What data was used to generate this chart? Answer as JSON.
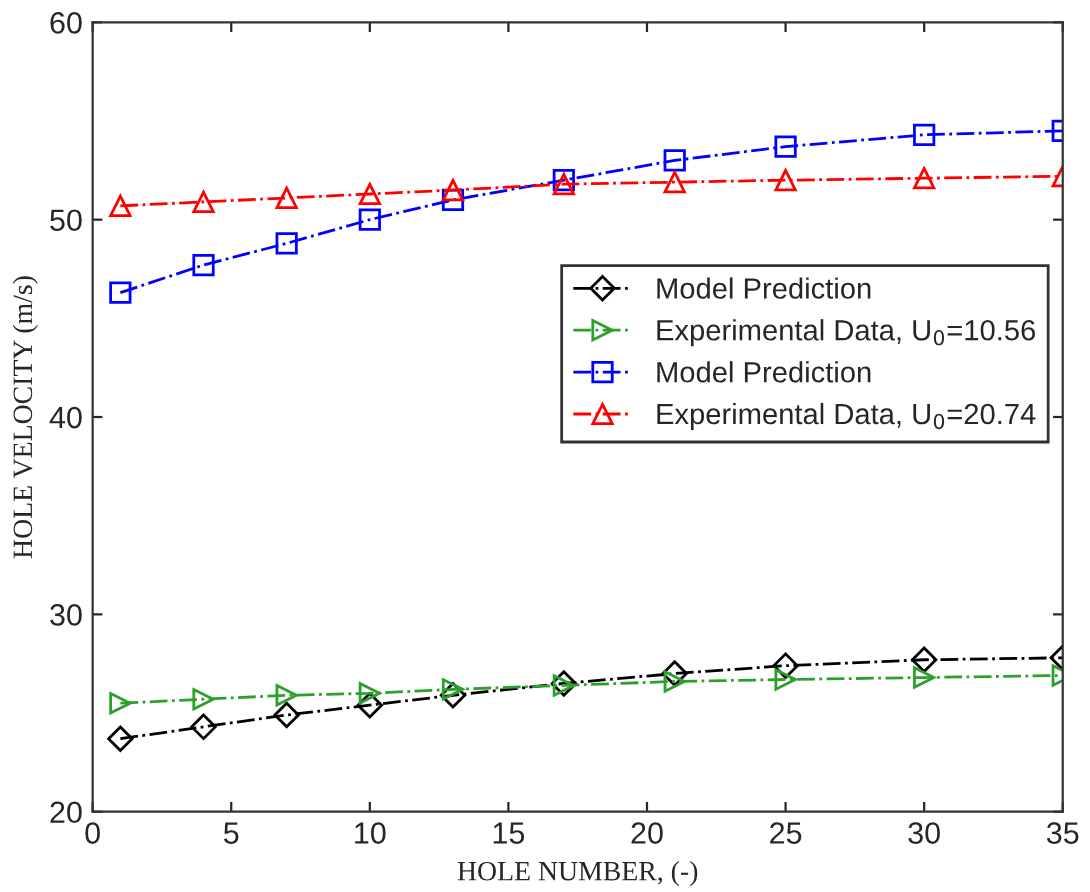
{
  "chart_data": {
    "type": "line",
    "xlabel": "HOLE NUMBER, (-)",
    "ylabel": "HOLE VELOCITY (m/s)",
    "x": [
      1,
      4,
      7,
      10,
      13,
      17,
      21,
      25,
      30,
      35
    ],
    "series": [
      {
        "name": "Model Prediction",
        "color": "#000000",
        "marker": "diamond",
        "values": [
          23.7,
          24.3,
          24.9,
          25.4,
          25.9,
          26.5,
          27.0,
          27.4,
          27.7,
          27.8
        ]
      },
      {
        "name": "Experimental Data, U$_{0}$=10.56",
        "color": "#2ca02c",
        "marker": "triangle-right",
        "values": [
          25.5,
          25.7,
          25.9,
          26.0,
          26.2,
          26.4,
          26.6,
          26.7,
          26.8,
          26.9
        ]
      },
      {
        "name": "Model Prediction",
        "color": "#0000ff",
        "marker": "square",
        "values": [
          46.3,
          47.7,
          48.8,
          50.0,
          51.0,
          52.0,
          53.0,
          53.7,
          54.3,
          54.5
        ]
      },
      {
        "name": "Experimental Data, U$_{0}$=20.74",
        "color": "#ff0000",
        "marker": "triangle",
        "values": [
          50.7,
          50.9,
          51.1,
          51.3,
          51.5,
          51.8,
          51.9,
          52.0,
          52.1,
          52.2
        ]
      }
    ],
    "line_style": "dashdot",
    "xlim": [
      0,
      35
    ],
    "xticks": [
      0,
      5,
      10,
      15,
      20,
      25,
      30,
      35
    ],
    "ylim": [
      20,
      60
    ],
    "yticks": [
      20,
      30,
      40,
      50,
      60
    ],
    "grid": false,
    "legend": "center right"
  }
}
